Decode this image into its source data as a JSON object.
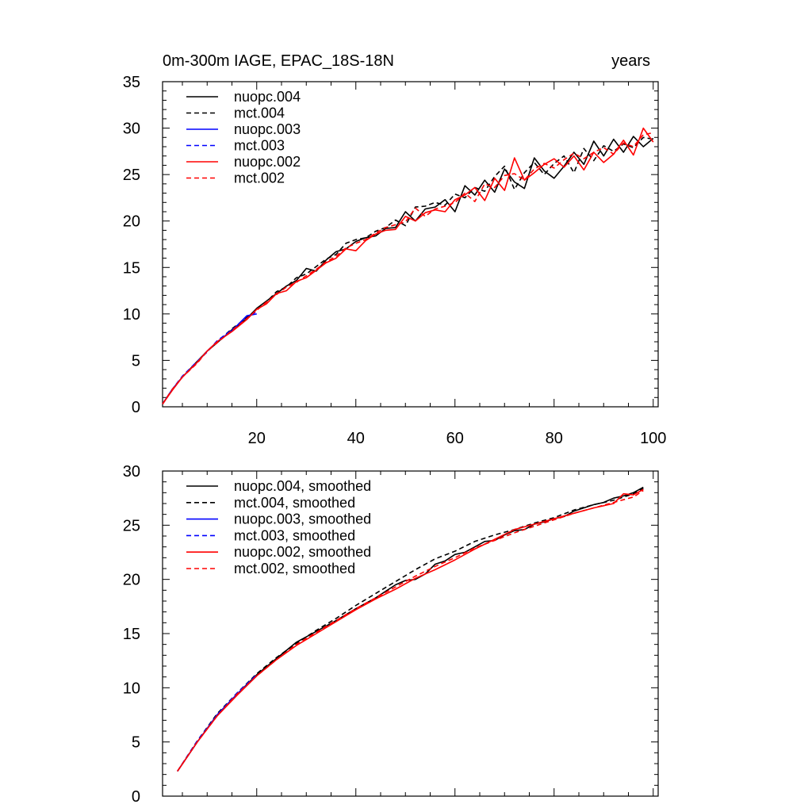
{
  "figure": {
    "title_left": "0m-300m IAGE, EPAC_18S-18N",
    "title_right": "years"
  },
  "chart_data": [
    {
      "type": "line",
      "title": "0m-300m IAGE, EPAC_18S-18N",
      "units_label": "years",
      "xlabel": "",
      "ylabel": "",
      "xlim": [
        1,
        101
      ],
      "ylim": [
        0,
        35
      ],
      "xticks": [
        20,
        40,
        60,
        80,
        100
      ],
      "yticks": [
        0,
        5,
        10,
        15,
        20,
        25,
        30,
        35
      ],
      "show_x_tick_labels": true,
      "legend_position": "top-left",
      "series": [
        {
          "name": "nuopc.004",
          "color": "#000000",
          "dash": "solid",
          "x": [
            1,
            3,
            5,
            8,
            10,
            12,
            15,
            18,
            20,
            22,
            24,
            26,
            28,
            30,
            32,
            34,
            36,
            38,
            40,
            42,
            44,
            46,
            48,
            50,
            52,
            54,
            56,
            58,
            60,
            62,
            64,
            66,
            68,
            70,
            72,
            74,
            76,
            78,
            80,
            82,
            84,
            86,
            88,
            90,
            92,
            94,
            96,
            98,
            100
          ],
          "y": [
            0.3,
            1.9,
            3.2,
            4.9,
            6.0,
            6.9,
            8.3,
            9.5,
            10.6,
            11.4,
            12.2,
            13.0,
            13.6,
            14.9,
            14.6,
            15.8,
            16.7,
            17.0,
            17.8,
            18.2,
            18.4,
            19.2,
            19.3,
            21.0,
            20.0,
            21.3,
            21.5,
            22.3,
            21.0,
            23.8,
            22.8,
            24.4,
            23.1,
            25.6,
            24.2,
            23.5,
            26.8,
            25.4,
            24.6,
            25.9,
            27.4,
            26.1,
            28.6,
            27.0,
            28.8,
            27.4,
            29.1,
            28.0,
            28.9
          ]
        },
        {
          "name": "mct.004",
          "color": "#000000",
          "dash": "dashed",
          "x": [
            1,
            3,
            5,
            8,
            10,
            12,
            15,
            18,
            20,
            22,
            24,
            26,
            28,
            30,
            32,
            34,
            36,
            38,
            40,
            42,
            44,
            46,
            48,
            50,
            52,
            54,
            56,
            58,
            60,
            62,
            64,
            66,
            68,
            70,
            72,
            74,
            76,
            78,
            80,
            82,
            84,
            86,
            88,
            90,
            92,
            94,
            96,
            98,
            100
          ],
          "y": [
            0.3,
            1.9,
            3.2,
            4.8,
            6.0,
            7.0,
            8.4,
            9.6,
            10.5,
            11.3,
            12.4,
            12.9,
            13.9,
            14.3,
            15.1,
            15.9,
            16.4,
            17.6,
            18.0,
            18.2,
            18.9,
            19.3,
            20.1,
            19.5,
            21.5,
            21.6,
            22.0,
            21.7,
            22.9,
            22.5,
            23.6,
            23.2,
            24.8,
            25.9,
            23.4,
            25.2,
            26.3,
            25.0,
            26.2,
            27.0,
            25.2,
            27.8,
            26.5,
            28.1,
            27.5,
            28.3,
            27.9,
            29.0,
            28.8
          ]
        },
        {
          "name": "nuopc.003",
          "color": "#0000ff",
          "dash": "solid",
          "x": [
            1,
            3,
            5,
            8,
            10,
            12,
            15,
            18,
            20
          ],
          "y": [
            0.3,
            1.9,
            3.2,
            4.8,
            6.0,
            7.0,
            8.2,
            9.8,
            10.0
          ]
        },
        {
          "name": "mct.003",
          "color": "#0000ff",
          "dash": "dashed",
          "x": [
            1,
            3,
            5,
            8,
            10,
            12,
            15,
            18,
            20
          ],
          "y": [
            0.3,
            1.9,
            3.3,
            4.9,
            5.9,
            7.1,
            8.3,
            9.5,
            10.3
          ]
        },
        {
          "name": "nuopc.002",
          "color": "#ff0000",
          "dash": "solid",
          "x": [
            1,
            3,
            5,
            8,
            10,
            12,
            15,
            18,
            20,
            22,
            24,
            26,
            28,
            30,
            32,
            34,
            36,
            38,
            40,
            42,
            44,
            46,
            48,
            50,
            52,
            54,
            56,
            58,
            60,
            62,
            64,
            66,
            68,
            70,
            72,
            74,
            76,
            78,
            80,
            82,
            84,
            86,
            88,
            90,
            92,
            94,
            96,
            98,
            100
          ],
          "y": [
            0.3,
            1.8,
            3.2,
            4.8,
            6.0,
            7.0,
            8.1,
            9.4,
            10.5,
            11.1,
            12.2,
            12.5,
            13.5,
            13.9,
            14.7,
            15.5,
            16.0,
            17.0,
            16.8,
            17.9,
            18.6,
            19.0,
            19.1,
            20.5,
            20.0,
            20.9,
            21.2,
            21.0,
            22.3,
            22.8,
            23.6,
            22.2,
            24.6,
            23.3,
            26.8,
            24.4,
            25.2,
            26.1,
            26.7,
            25.8,
            27.0,
            25.5,
            27.4,
            26.3,
            27.2,
            28.7,
            27.1,
            30.0,
            28.5
          ]
        },
        {
          "name": "mct.002",
          "color": "#ff0000",
          "dash": "dashed",
          "x": [
            1,
            3,
            5,
            8,
            10,
            12,
            15,
            18,
            20,
            22,
            24,
            26,
            28,
            30,
            32,
            34,
            36,
            38,
            40,
            42,
            44,
            46,
            48,
            50,
            52,
            54,
            56,
            58,
            60,
            62,
            64,
            66,
            68,
            70,
            72,
            74,
            76,
            78,
            80,
            82,
            84,
            86,
            88,
            90,
            92,
            94,
            96,
            98,
            100
          ],
          "y": [
            0.3,
            1.9,
            3.2,
            4.7,
            6.0,
            6.9,
            8.2,
            9.5,
            10.4,
            11.3,
            12.1,
            12.9,
            13.4,
            14.1,
            14.8,
            15.6,
            16.2,
            17.1,
            17.6,
            18.0,
            18.7,
            19.3,
            19.6,
            19.9,
            21.4,
            20.5,
            21.3,
            21.6,
            22.0,
            23.0,
            22.1,
            24.0,
            23.6,
            24.9,
            25.1,
            24.4,
            25.6,
            26.2,
            25.7,
            26.6,
            27.3,
            26.7,
            27.4,
            27.9,
            27.2,
            28.4,
            28.0,
            29.3,
            29.5
          ]
        }
      ]
    },
    {
      "type": "line",
      "title": "",
      "xlabel": "",
      "ylabel": "",
      "xlim": [
        1,
        101
      ],
      "ylim": [
        0,
        30
      ],
      "xticks": [
        20,
        40,
        60,
        80,
        100
      ],
      "yticks": [
        0,
        5,
        10,
        15,
        20,
        25,
        30
      ],
      "show_x_tick_labels": false,
      "legend_position": "top-left",
      "series": [
        {
          "name": "nuopc.004, smoothed",
          "color": "#000000",
          "dash": "solid",
          "x": [
            4,
            8,
            12,
            16,
            20,
            24,
            28,
            32,
            36,
            40,
            44,
            46,
            48,
            50,
            52,
            54,
            56,
            58,
            60,
            62,
            64,
            66,
            68,
            70,
            72,
            74,
            76,
            78,
            80,
            82,
            84,
            86,
            88,
            90,
            92,
            94,
            96,
            98
          ],
          "y": [
            2.3,
            5.0,
            7.5,
            9.4,
            11.2,
            12.7,
            14.2,
            15.2,
            16.2,
            17.3,
            18.3,
            18.9,
            19.5,
            19.9,
            20.0,
            20.5,
            21.4,
            21.7,
            22.3,
            22.5,
            23.0,
            23.5,
            23.6,
            24.1,
            24.5,
            24.6,
            25.1,
            25.3,
            25.6,
            25.8,
            26.3,
            26.6,
            26.9,
            27.1,
            27.5,
            27.7,
            28.0,
            28.5
          ]
        },
        {
          "name": "mct.004, smoothed",
          "color": "#000000",
          "dash": "dashed",
          "x": [
            4,
            8,
            12,
            16,
            20,
            24,
            28,
            32,
            36,
            40,
            44,
            48,
            52,
            56,
            60,
            64,
            68,
            72,
            76,
            80,
            84,
            88,
            92,
            96,
            98
          ],
          "y": [
            2.3,
            5.1,
            7.6,
            9.5,
            11.3,
            12.8,
            14.1,
            15.3,
            16.4,
            17.6,
            18.7,
            19.8,
            20.9,
            21.9,
            22.6,
            23.5,
            24.1,
            24.6,
            25.2,
            25.7,
            26.4,
            26.9,
            27.3,
            27.9,
            28.4
          ]
        },
        {
          "name": "nuopc.003, smoothed",
          "color": "#0000ff",
          "dash": "solid",
          "x": [
            4,
            8,
            12,
            16,
            20
          ],
          "y": [
            2.3,
            5.0,
            7.5,
            9.4,
            11.1
          ]
        },
        {
          "name": "mct.003, smoothed",
          "color": "#0000ff",
          "dash": "dashed",
          "x": [
            4,
            8,
            12,
            16,
            20
          ],
          "y": [
            2.3,
            5.1,
            7.5,
            9.5,
            11.2
          ]
        },
        {
          "name": "nuopc.002, smoothed",
          "color": "#ff0000",
          "dash": "solid",
          "x": [
            4,
            8,
            12,
            16,
            20,
            24,
            28,
            32,
            36,
            40,
            44,
            48,
            52,
            56,
            60,
            64,
            68,
            72,
            76,
            80,
            84,
            88,
            92,
            94,
            96,
            98
          ],
          "y": [
            2.3,
            5.0,
            7.4,
            9.3,
            11.1,
            12.6,
            13.9,
            15.0,
            16.1,
            17.2,
            18.2,
            19.1,
            20.1,
            20.9,
            21.8,
            22.8,
            23.7,
            24.6,
            25.1,
            25.6,
            26.1,
            26.6,
            27.0,
            27.9,
            27.8,
            28.3
          ]
        },
        {
          "name": "mct.002, smoothed",
          "color": "#ff0000",
          "dash": "dashed",
          "x": [
            4,
            8,
            12,
            16,
            20,
            24,
            28,
            32,
            36,
            40,
            44,
            48,
            52,
            56,
            60,
            64,
            68,
            72,
            76,
            80,
            84,
            88,
            92,
            96,
            98
          ],
          "y": [
            2.3,
            5.0,
            7.4,
            9.4,
            11.1,
            12.6,
            14.0,
            15.1,
            16.2,
            17.3,
            18.3,
            19.3,
            20.3,
            21.2,
            22.0,
            22.9,
            23.6,
            24.3,
            24.9,
            25.5,
            26.1,
            26.6,
            27.1,
            27.6,
            28.2
          ]
        }
      ]
    }
  ]
}
